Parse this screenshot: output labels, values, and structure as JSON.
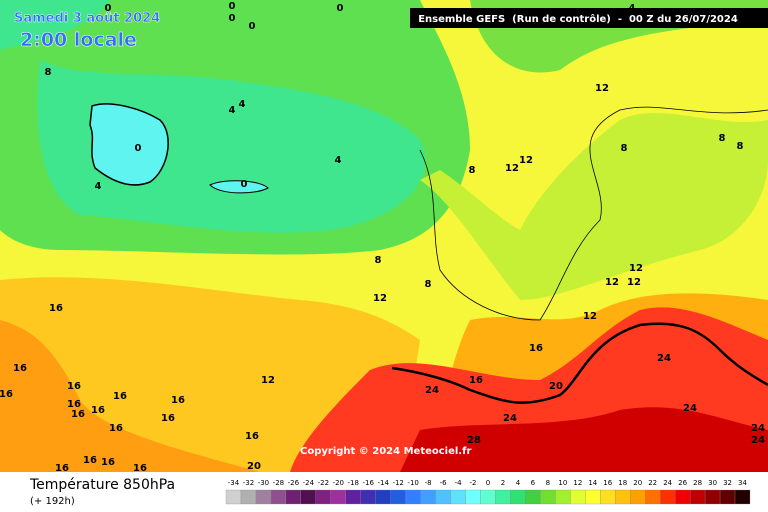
{
  "header": {
    "date": "Samedi 3 août 2024",
    "time": "2:00 locale",
    "run": "Ensemble GEFS  (Run de contrôle)  -  00 Z du 26/07/2024"
  },
  "copyright": "Copyright © 2024 Meteociel.fr",
  "footer": {
    "title": "Température 850hPa",
    "lead": "(+ 192h)"
  },
  "legend": {
    "ticks": [
      -34,
      -32,
      -30,
      -28,
      -26,
      -24,
      -22,
      -20,
      -18,
      -16,
      -14,
      -12,
      -10,
      -8,
      -6,
      -4,
      -2,
      0,
      2,
      4,
      6,
      8,
      10,
      12,
      14,
      16,
      18,
      20,
      22,
      24,
      26,
      28,
      30,
      32,
      34
    ],
    "colors": [
      "#d0d0d0",
      "#b0b0b0",
      "#a080a0",
      "#905090",
      "#702070",
      "#501050",
      "#802080",
      "#a030a0",
      "#6020a0",
      "#4030b0",
      "#2040c0",
      "#2060e0",
      "#3080ff",
      "#40a0ff",
      "#50c0ff",
      "#60e0ff",
      "#70ffff",
      "#60ffd0",
      "#40f0a0",
      "#30e070",
      "#40d040",
      "#70e030",
      "#a0f030",
      "#e0ff30",
      "#ffff30",
      "#ffe020",
      "#ffc010",
      "#ffa000",
      "#ff7000",
      "#ff3000",
      "#f00000",
      "#c00000",
      "#900000",
      "#600000",
      "#200000"
    ]
  },
  "contour_labels": [
    "0",
    "0",
    "0",
    "0",
    "0",
    "4",
    "8",
    "4",
    "4",
    "0",
    "4",
    "0",
    "4",
    "12",
    "8",
    "12",
    "12",
    "8",
    "8",
    "8",
    "8",
    "8",
    "12",
    "12",
    "12",
    "12",
    "12",
    "16",
    "16",
    "16",
    "16",
    "16",
    "16",
    "16",
    "16",
    "16",
    "16",
    "16",
    "16",
    "16",
    "16",
    "16",
    "12",
    "16",
    "16",
    "16",
    "20",
    "24",
    "24",
    "24",
    "24",
    "28",
    "20",
    "24",
    "24"
  ]
}
